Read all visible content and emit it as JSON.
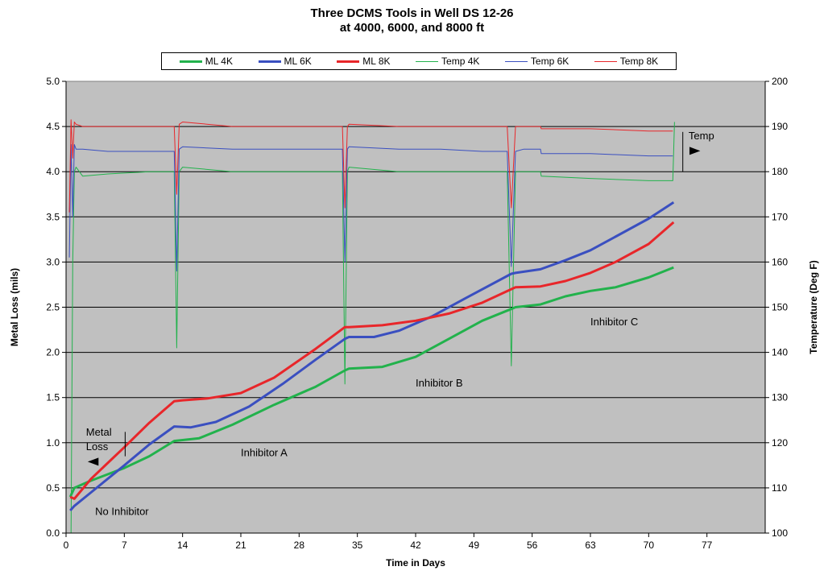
{
  "chart_data": {
    "type": "line",
    "title": [
      "Three DCMS Tools in Well DS 12-26",
      "at 4000, 6000, and 8000 ft"
    ],
    "xlabel": "Time in Days",
    "ylabel": "Metal Loss (mils)",
    "y2label": "Temperature (Deg F)",
    "xlim": [
      0,
      84
    ],
    "ylim": [
      0,
      5.0
    ],
    "y2lim": [
      100,
      200
    ],
    "xticks": [
      0,
      7,
      14,
      21,
      28,
      35,
      42,
      49,
      56,
      63,
      70,
      77
    ],
    "yticks": [
      "0.0",
      "0.5",
      "1.0",
      "1.5",
      "2.0",
      "2.5",
      "3.0",
      "3.5",
      "4.0",
      "4.5",
      "5.0"
    ],
    "y2ticks": [
      "100",
      "110",
      "120",
      "130",
      "140",
      "150",
      "160",
      "170",
      "180",
      "190",
      "200"
    ],
    "grid": "horizontal",
    "background": "#c0c0c0",
    "legend_placement": "top",
    "series": [
      {
        "name": "ML 4K",
        "axis": "left",
        "color": "#22b24c",
        "width": 3,
        "x": [
          0.5,
          1,
          3,
          7,
          10,
          13,
          16,
          20,
          25,
          30,
          33.5,
          34,
          38,
          42,
          46,
          50,
          53.5,
          54,
          57,
          60,
          63,
          66,
          70,
          73
        ],
        "y": [
          0.4,
          0.5,
          0.58,
          0.72,
          0.85,
          1.02,
          1.05,
          1.2,
          1.42,
          1.62,
          1.8,
          1.82,
          1.84,
          1.95,
          2.15,
          2.35,
          2.48,
          2.5,
          2.53,
          2.62,
          2.68,
          2.72,
          2.83,
          2.94
        ]
      },
      {
        "name": "ML 6K",
        "axis": "left",
        "color": "#3a4fc0",
        "width": 3,
        "x": [
          0.5,
          1,
          3,
          7,
          10,
          13,
          15,
          18,
          22,
          26,
          30,
          33.5,
          34,
          37,
          40,
          44,
          48,
          53.5,
          54,
          57,
          60,
          63,
          66,
          70,
          73
        ],
        "y": [
          0.25,
          0.3,
          0.45,
          0.75,
          0.98,
          1.18,
          1.17,
          1.23,
          1.4,
          1.65,
          1.92,
          2.15,
          2.17,
          2.17,
          2.24,
          2.4,
          2.6,
          2.87,
          2.88,
          2.92,
          3.02,
          3.13,
          3.28,
          3.48,
          3.66
        ]
      },
      {
        "name": "ML 8K",
        "axis": "left",
        "color": "#e8262a",
        "width": 3,
        "x": [
          0.5,
          1,
          3,
          7,
          10,
          13,
          14,
          17,
          21,
          25,
          30,
          33.5,
          34,
          38,
          42,
          46,
          50,
          53.5,
          54,
          57,
          60,
          63,
          66,
          70,
          73
        ],
        "y": [
          0.4,
          0.38,
          0.6,
          0.95,
          1.22,
          1.46,
          1.47,
          1.49,
          1.55,
          1.72,
          2.04,
          2.28,
          2.28,
          2.3,
          2.35,
          2.43,
          2.55,
          2.7,
          2.72,
          2.73,
          2.79,
          2.88,
          3.0,
          3.2,
          3.44
        ]
      },
      {
        "name": "Temp 4K",
        "axis": "right",
        "color": "#22b24c",
        "width": 1,
        "x": [
          0.6,
          0.8,
          1.0,
          1.2,
          2,
          5,
          10,
          13,
          13.3,
          13.6,
          14,
          20,
          25,
          30,
          33.2,
          33.5,
          33.8,
          34,
          40,
          45,
          50,
          53,
          53.5,
          54,
          55,
          57,
          57.1,
          63,
          70,
          72.9,
          73.1
        ],
        "y": [
          100,
          160,
          180,
          181,
          179,
          179.5,
          180,
          180,
          141,
          180,
          181,
          180,
          180,
          180,
          180,
          133,
          180,
          181,
          180,
          180,
          180,
          180,
          137,
          180,
          180,
          180,
          179,
          178.5,
          178,
          178,
          191
        ]
      },
      {
        "name": "Temp 6K",
        "axis": "right",
        "color": "#3a4fc0",
        "width": 1,
        "x": [
          0.4,
          0.6,
          0.8,
          1.0,
          1.2,
          2,
          5,
          10,
          13,
          13.3,
          13.6,
          14,
          20,
          25,
          30,
          33.2,
          33.5,
          33.8,
          34,
          40,
          45,
          50,
          53,
          53.5,
          54,
          55,
          57,
          57.1,
          63,
          70,
          72.9
        ],
        "y": [
          161,
          186,
          170,
          186,
          185,
          185,
          184.5,
          184.5,
          184.5,
          158,
          185,
          185.5,
          185,
          185,
          185,
          185,
          160,
          185,
          185.5,
          185,
          185,
          184.5,
          184.5,
          159,
          184.5,
          185,
          185,
          184,
          184,
          183.5,
          183.5
        ]
      },
      {
        "name": "Temp 8K",
        "axis": "right",
        "color": "#e8262a",
        "width": 1,
        "x": [
          0.4,
          0.6,
          0.8,
          1.0,
          1.2,
          2,
          5,
          10,
          13,
          13.3,
          13.6,
          14,
          20,
          25,
          30,
          33.2,
          33.5,
          33.8,
          34,
          40,
          45,
          50,
          53,
          53.5,
          54,
          55,
          57,
          57.1,
          63,
          70,
          72.9
        ],
        "y": [
          171,
          191.5,
          183,
          191,
          190.5,
          190,
          190,
          190,
          190,
          175,
          190.5,
          191,
          190,
          190,
          190,
          190,
          172,
          190,
          190.5,
          190,
          190,
          190,
          190,
          172,
          190,
          190,
          190,
          189.5,
          189.5,
          189,
          189
        ]
      }
    ],
    "annotations": [
      {
        "text": "No Inhibitor",
        "x": 3.5,
        "y": 0.2
      },
      {
        "text": "Inhibitor A",
        "x": 21,
        "y": 0.85
      },
      {
        "text": "Inhibitor B",
        "x": 42,
        "y": 1.62
      },
      {
        "text": "Inhibitor C",
        "x": 63,
        "y": 2.3
      },
      {
        "text": "Metal",
        "x": 2.4,
        "y": 1.08
      },
      {
        "text": "Loss",
        "x": 2.4,
        "y": 0.92
      },
      {
        "text": "Temp",
        "x": 74.8,
        "y": 4.36
      }
    ]
  }
}
